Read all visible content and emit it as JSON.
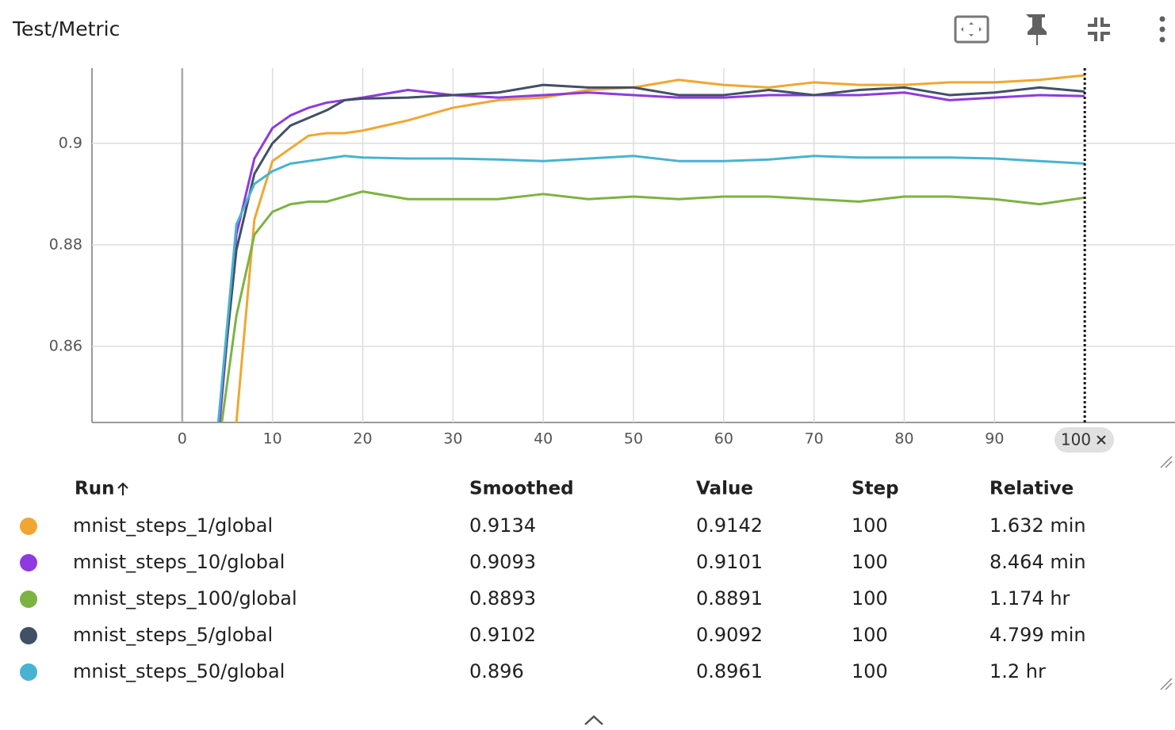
{
  "header": {
    "title": "Test/Metric"
  },
  "chart_data": {
    "type": "line",
    "x": [
      4,
      6,
      8,
      10,
      12,
      14,
      16,
      18,
      20,
      25,
      30,
      35,
      40,
      45,
      50,
      55,
      60,
      65,
      70,
      75,
      80,
      85,
      90,
      95,
      100
    ],
    "series": [
      {
        "name": "mnist_steps_1/global",
        "color": "#f0a732",
        "values": [
          0.8,
          0.845,
          0.885,
          0.8965,
          0.899,
          0.9015,
          0.902,
          0.902,
          0.9025,
          0.9045,
          0.907,
          0.9085,
          0.909,
          0.9105,
          0.911,
          0.9125,
          0.9115,
          0.911,
          0.912,
          0.9115,
          0.9115,
          0.912,
          0.912,
          0.9125,
          0.9134
        ]
      },
      {
        "name": "mnist_steps_10/global",
        "color": "#8e3ae0",
        "values": [
          0.842,
          0.882,
          0.897,
          0.903,
          0.9055,
          0.907,
          0.908,
          0.9085,
          0.909,
          0.9105,
          0.9095,
          0.909,
          0.9095,
          0.91,
          0.9095,
          0.909,
          0.909,
          0.9095,
          0.9095,
          0.9095,
          0.91,
          0.9085,
          0.909,
          0.9095,
          0.9093
        ]
      },
      {
        "name": "mnist_steps_100/global",
        "color": "#7cb342",
        "values": [
          0.84,
          0.866,
          0.882,
          0.8865,
          0.888,
          0.8885,
          0.8885,
          0.8895,
          0.8905,
          0.889,
          0.889,
          0.889,
          0.89,
          0.889,
          0.8895,
          0.889,
          0.8895,
          0.8895,
          0.889,
          0.8885,
          0.8895,
          0.8895,
          0.889,
          0.888,
          0.8893
        ]
      },
      {
        "name": "mnist_steps_5/global",
        "color": "#425066",
        "values": [
          0.845,
          0.879,
          0.894,
          0.9,
          0.9035,
          0.905,
          0.9065,
          0.9085,
          0.9088,
          0.909,
          0.9095,
          0.91,
          0.9115,
          0.911,
          0.911,
          0.9095,
          0.9095,
          0.9105,
          0.9095,
          0.9105,
          0.911,
          0.9095,
          0.91,
          0.911,
          0.9102
        ]
      },
      {
        "name": "mnist_steps_50/global",
        "color": "#48b3d0",
        "values": [
          0.845,
          0.884,
          0.892,
          0.8945,
          0.896,
          0.8965,
          0.897,
          0.8975,
          0.8972,
          0.897,
          0.897,
          0.8968,
          0.8965,
          0.897,
          0.8975,
          0.8965,
          0.8965,
          0.8968,
          0.8975,
          0.8972,
          0.8972,
          0.8972,
          0.897,
          0.8965,
          0.896
        ]
      }
    ],
    "xlim": [
      -10,
      110
    ],
    "ylim": [
      0.845,
      0.9148
    ],
    "xticks": [
      0,
      10,
      20,
      30,
      40,
      50,
      60,
      70,
      80,
      90
    ],
    "yticks": [
      0.86,
      0.88,
      0.9
    ],
    "grid": true,
    "cursor_x": 100
  },
  "table": {
    "columns": [
      "Run",
      "Smoothed",
      "Value",
      "Step",
      "Relative"
    ],
    "rows": [
      [
        "0.9134",
        "0.9142",
        "100",
        "1.632 min"
      ],
      [
        "0.9093",
        "0.9101",
        "100",
        "8.464 min"
      ],
      [
        "0.8893",
        "0.8891",
        "100",
        "1.174 hr"
      ],
      [
        "0.9102",
        "0.9092",
        "100",
        "4.799 min"
      ],
      [
        "0.896",
        "0.8961",
        "100",
        "1.2 hr"
      ]
    ]
  }
}
